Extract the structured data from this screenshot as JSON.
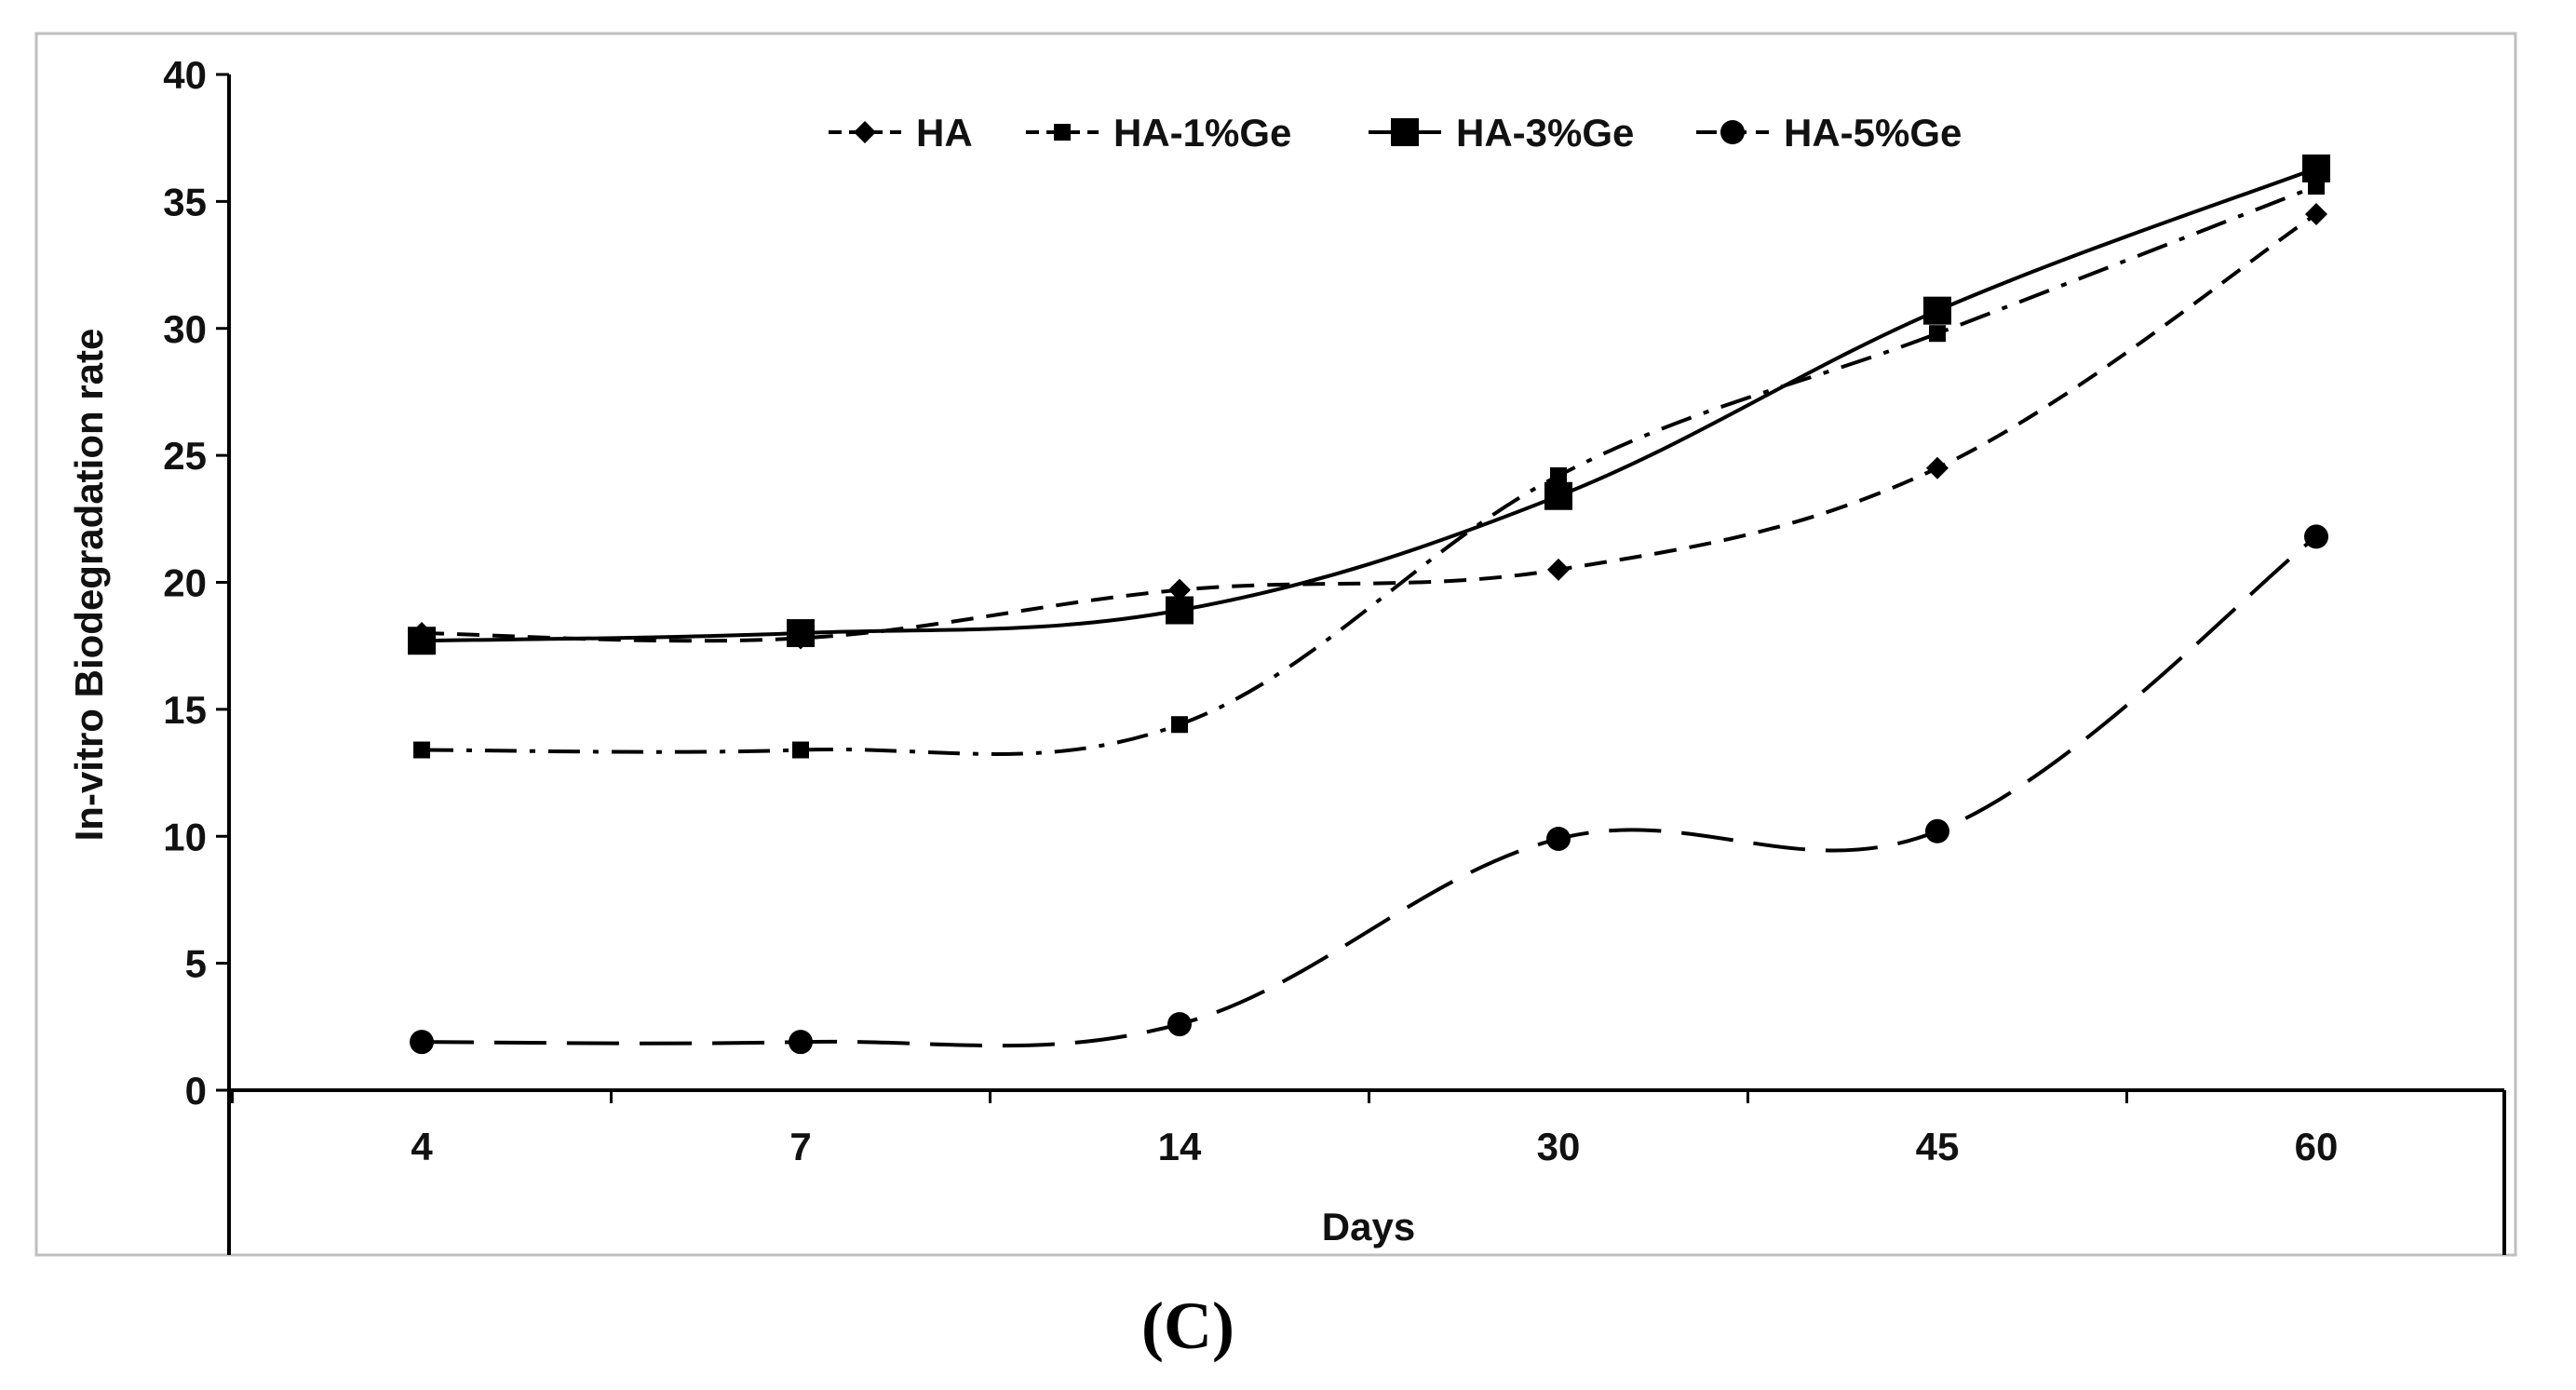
{
  "chart_data": {
    "type": "line",
    "title": "",
    "xlabel": "Days",
    "ylabel": "In-vitro Biodegradation rate",
    "categories": [
      "4",
      "7",
      "14",
      "30",
      "45",
      "60"
    ],
    "ylim": [
      0,
      40
    ],
    "yticks": [
      0,
      5,
      10,
      15,
      20,
      25,
      30,
      35,
      40
    ],
    "grid": false,
    "legend_position": "top-center",
    "series": [
      {
        "name": "HA",
        "marker": "diamond",
        "line_style": "dashed",
        "values": [
          18.0,
          17.8,
          19.7,
          20.5,
          24.5,
          34.5
        ]
      },
      {
        "name": "HA-1%Ge",
        "marker": "small-square",
        "line_style": "dash-dot",
        "values": [
          13.4,
          13.4,
          14.4,
          24.2,
          29.8,
          35.6
        ]
      },
      {
        "name": "HA-3%Ge",
        "marker": "square",
        "line_style": "solid",
        "values": [
          17.7,
          18.0,
          18.9,
          23.4,
          30.7,
          36.3
        ]
      },
      {
        "name": "HA-5%Ge",
        "marker": "circle",
        "line_style": "long-dashed",
        "values": [
          1.9,
          1.9,
          2.6,
          9.9,
          10.2,
          21.8
        ]
      }
    ]
  },
  "caption": "(C)",
  "colors": {
    "line": "#000000",
    "axis": "#000000",
    "frame": "#bfbfbf"
  }
}
